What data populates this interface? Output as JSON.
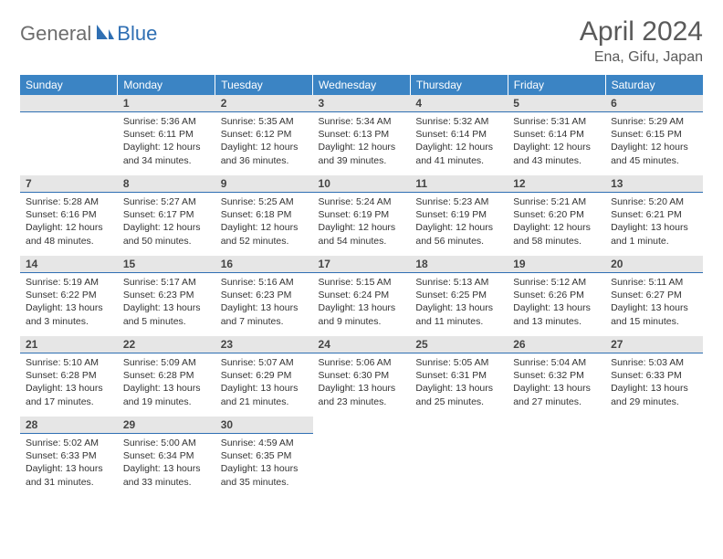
{
  "brand": {
    "part1": "General",
    "part2": "Blue"
  },
  "title": "April 2024",
  "location": "Ena, Gifu, Japan",
  "colors": {
    "header_bg": "#3b84c4",
    "header_text": "#ffffff",
    "daynum_bg": "#e6e6e6",
    "daynum_border": "#2f6fb3",
    "body_text": "#333333",
    "title_text": "#5a5a5a"
  },
  "weekdays": [
    "Sunday",
    "Monday",
    "Tuesday",
    "Wednesday",
    "Thursday",
    "Friday",
    "Saturday"
  ],
  "weeks": [
    [
      null,
      {
        "n": "1",
        "sr": "5:36 AM",
        "ss": "6:11 PM",
        "dl": "12 hours and 34 minutes."
      },
      {
        "n": "2",
        "sr": "5:35 AM",
        "ss": "6:12 PM",
        "dl": "12 hours and 36 minutes."
      },
      {
        "n": "3",
        "sr": "5:34 AM",
        "ss": "6:13 PM",
        "dl": "12 hours and 39 minutes."
      },
      {
        "n": "4",
        "sr": "5:32 AM",
        "ss": "6:14 PM",
        "dl": "12 hours and 41 minutes."
      },
      {
        "n": "5",
        "sr": "5:31 AM",
        "ss": "6:14 PM",
        "dl": "12 hours and 43 minutes."
      },
      {
        "n": "6",
        "sr": "5:29 AM",
        "ss": "6:15 PM",
        "dl": "12 hours and 45 minutes."
      }
    ],
    [
      {
        "n": "7",
        "sr": "5:28 AM",
        "ss": "6:16 PM",
        "dl": "12 hours and 48 minutes."
      },
      {
        "n": "8",
        "sr": "5:27 AM",
        "ss": "6:17 PM",
        "dl": "12 hours and 50 minutes."
      },
      {
        "n": "9",
        "sr": "5:25 AM",
        "ss": "6:18 PM",
        "dl": "12 hours and 52 minutes."
      },
      {
        "n": "10",
        "sr": "5:24 AM",
        "ss": "6:19 PM",
        "dl": "12 hours and 54 minutes."
      },
      {
        "n": "11",
        "sr": "5:23 AM",
        "ss": "6:19 PM",
        "dl": "12 hours and 56 minutes."
      },
      {
        "n": "12",
        "sr": "5:21 AM",
        "ss": "6:20 PM",
        "dl": "12 hours and 58 minutes."
      },
      {
        "n": "13",
        "sr": "5:20 AM",
        "ss": "6:21 PM",
        "dl": "13 hours and 1 minute."
      }
    ],
    [
      {
        "n": "14",
        "sr": "5:19 AM",
        "ss": "6:22 PM",
        "dl": "13 hours and 3 minutes."
      },
      {
        "n": "15",
        "sr": "5:17 AM",
        "ss": "6:23 PM",
        "dl": "13 hours and 5 minutes."
      },
      {
        "n": "16",
        "sr": "5:16 AM",
        "ss": "6:23 PM",
        "dl": "13 hours and 7 minutes."
      },
      {
        "n": "17",
        "sr": "5:15 AM",
        "ss": "6:24 PM",
        "dl": "13 hours and 9 minutes."
      },
      {
        "n": "18",
        "sr": "5:13 AM",
        "ss": "6:25 PM",
        "dl": "13 hours and 11 minutes."
      },
      {
        "n": "19",
        "sr": "5:12 AM",
        "ss": "6:26 PM",
        "dl": "13 hours and 13 minutes."
      },
      {
        "n": "20",
        "sr": "5:11 AM",
        "ss": "6:27 PM",
        "dl": "13 hours and 15 minutes."
      }
    ],
    [
      {
        "n": "21",
        "sr": "5:10 AM",
        "ss": "6:28 PM",
        "dl": "13 hours and 17 minutes."
      },
      {
        "n": "22",
        "sr": "5:09 AM",
        "ss": "6:28 PM",
        "dl": "13 hours and 19 minutes."
      },
      {
        "n": "23",
        "sr": "5:07 AM",
        "ss": "6:29 PM",
        "dl": "13 hours and 21 minutes."
      },
      {
        "n": "24",
        "sr": "5:06 AM",
        "ss": "6:30 PM",
        "dl": "13 hours and 23 minutes."
      },
      {
        "n": "25",
        "sr": "5:05 AM",
        "ss": "6:31 PM",
        "dl": "13 hours and 25 minutes."
      },
      {
        "n": "26",
        "sr": "5:04 AM",
        "ss": "6:32 PM",
        "dl": "13 hours and 27 minutes."
      },
      {
        "n": "27",
        "sr": "5:03 AM",
        "ss": "6:33 PM",
        "dl": "13 hours and 29 minutes."
      }
    ],
    [
      {
        "n": "28",
        "sr": "5:02 AM",
        "ss": "6:33 PM",
        "dl": "13 hours and 31 minutes."
      },
      {
        "n": "29",
        "sr": "5:00 AM",
        "ss": "6:34 PM",
        "dl": "13 hours and 33 minutes."
      },
      {
        "n": "30",
        "sr": "4:59 AM",
        "ss": "6:35 PM",
        "dl": "13 hours and 35 minutes."
      },
      null,
      null,
      null,
      null
    ]
  ],
  "labels": {
    "sunrise": "Sunrise:",
    "sunset": "Sunset:",
    "daylight": "Daylight:"
  }
}
